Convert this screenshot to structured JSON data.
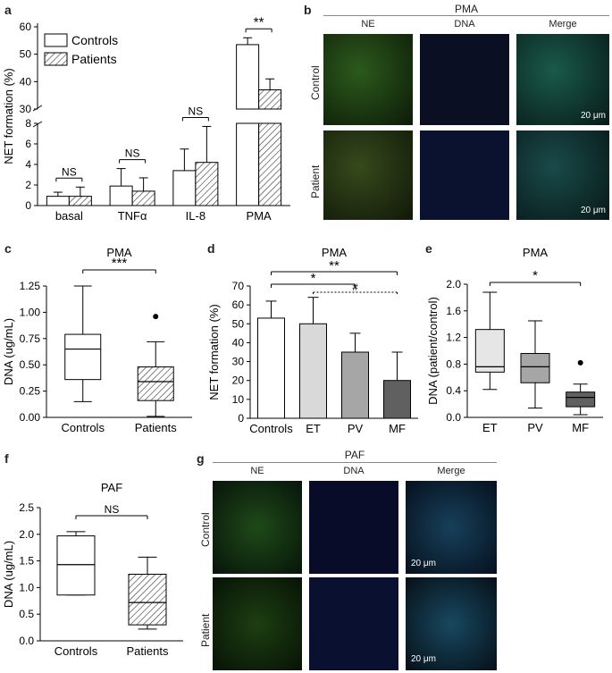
{
  "panels": {
    "a": {
      "letter": "a"
    },
    "b": {
      "letter": "b",
      "title": "PMA",
      "cols": [
        "NE",
        "DNA",
        "Merge"
      ],
      "rows": [
        "Control",
        "Patient"
      ],
      "scale": "20 μm"
    },
    "c": {
      "letter": "c"
    },
    "d": {
      "letter": "d"
    },
    "e": {
      "letter": "e"
    },
    "f": {
      "letter": "f"
    },
    "g": {
      "letter": "g",
      "title": "PAF",
      "cols": [
        "NE",
        "DNA",
        "Merge"
      ],
      "rows": [
        "Control",
        "Patient"
      ],
      "scale": "20 μm"
    }
  },
  "chart_data": [
    {
      "id": "a",
      "type": "bar",
      "ylabel": "NET formation (%)",
      "categories": [
        "basal",
        "TNFα",
        "IL-8",
        "PMA"
      ],
      "series": [
        {
          "name": "Controls",
          "values": [
            0.9,
            1.9,
            3.4,
            53.5
          ],
          "errors": [
            0.4,
            1.7,
            2.1,
            2.5
          ],
          "color": "#ffffff"
        },
        {
          "name": "Patients",
          "values": [
            0.9,
            1.4,
            4.2,
            37
          ],
          "errors": [
            0.9,
            1.3,
            3.5,
            4
          ]
        }
      ],
      "broken_axis": {
        "lower": [
          0,
          8
        ],
        "upper": [
          30,
          60
        ]
      },
      "yticks_lower": [
        0,
        2,
        4,
        6,
        8
      ],
      "yticks_upper": [
        30,
        40,
        50,
        60
      ],
      "significance": [
        "NS",
        "NS",
        "NS",
        "**"
      ]
    },
    {
      "id": "c",
      "type": "boxplot",
      "title": "PMA",
      "ylabel": "DNA (ug/mL)",
      "categories": [
        "Controls",
        "Patients"
      ],
      "boxes": [
        {
          "min": 0.15,
          "q1": 0.36,
          "median": 0.65,
          "q3": 0.79,
          "max": 1.25,
          "outliers": []
        },
        {
          "min": 0.01,
          "q1": 0.16,
          "median": 0.34,
          "q3": 0.48,
          "max": 0.72,
          "outliers": [
            0.96
          ]
        }
      ],
      "ylim": [
        0,
        1.25
      ],
      "yticks": [
        "0.00",
        "0.25",
        "0.50",
        "0.75",
        "1.00",
        "1.25"
      ],
      "significance": "***"
    },
    {
      "id": "d",
      "type": "bar",
      "title": "PMA",
      "ylabel": "NET formation (%)",
      "categories": [
        "Controls",
        "ET",
        "PV",
        "MF"
      ],
      "values": [
        53,
        50,
        35,
        20
      ],
      "errors": [
        9,
        14,
        10,
        15
      ],
      "colors": [
        "#ffffff",
        "#d9d9d9",
        "#a6a6a6",
        "#606060"
      ],
      "ylim": [
        0,
        70
      ],
      "yticks": [
        0,
        10,
        20,
        30,
        40,
        50,
        60,
        70
      ],
      "significance": [
        "**",
        "*",
        "#"
      ]
    },
    {
      "id": "e",
      "type": "boxplot",
      "title": "PMA",
      "ylabel": "DNA (patient/control)",
      "categories": [
        "ET",
        "PV",
        "MF"
      ],
      "boxes": [
        {
          "min": 0.42,
          "q1": 0.68,
          "median": 0.76,
          "q3": 1.32,
          "max": 1.88,
          "outliers": []
        },
        {
          "min": 0.14,
          "q1": 0.52,
          "median": 0.76,
          "q3": 0.96,
          "max": 1.45,
          "outliers": []
        },
        {
          "min": 0.04,
          "q1": 0.16,
          "median": 0.3,
          "q3": 0.38,
          "max": 0.5,
          "outliers": [
            0.82
          ]
        }
      ],
      "colors": [
        "#e6e6e6",
        "#a6a6a6",
        "#606060"
      ],
      "ylim": [
        0,
        2
      ],
      "yticks": [
        "0.0",
        "0.4",
        "0.8",
        "1.2",
        "1.6",
        "2.0"
      ],
      "significance": "*"
    },
    {
      "id": "f",
      "type": "boxplot",
      "title": "PAF",
      "ylabel": "DNA (ug/mL)",
      "categories": [
        "Controls",
        "Patients"
      ],
      "boxes": [
        {
          "min": 0.86,
          "q1": 0.86,
          "median": 1.43,
          "q3": 1.97,
          "max": 2.05,
          "outliers": []
        },
        {
          "min": 0.22,
          "q1": 0.3,
          "median": 0.72,
          "q3": 1.25,
          "max": 1.57,
          "outliers": []
        }
      ],
      "ylim": [
        0,
        2.5
      ],
      "yticks": [
        "0.0",
        "0.5",
        "1.0",
        "1.5",
        "2.0",
        "2.5"
      ],
      "significance": "NS"
    }
  ]
}
